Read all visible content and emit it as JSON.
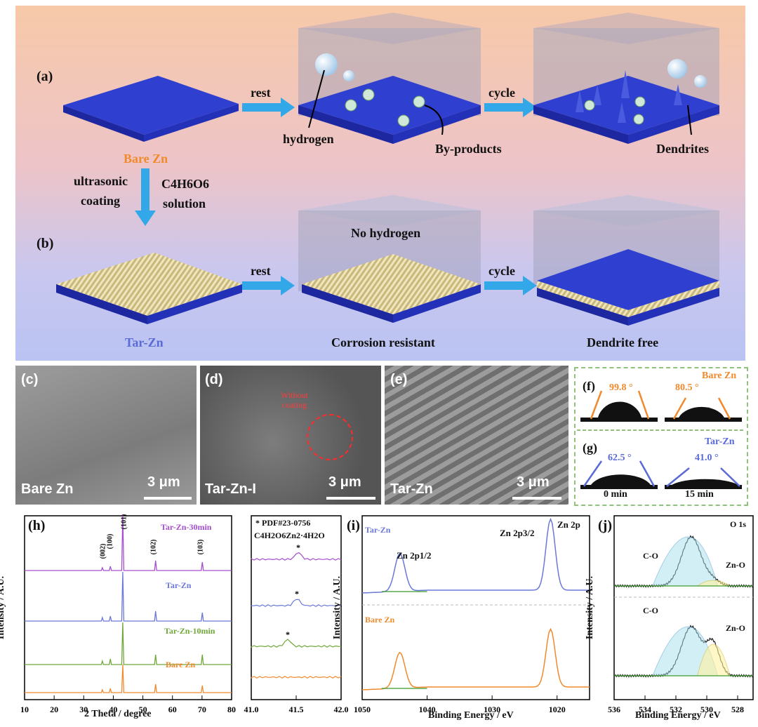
{
  "schematic": {
    "panel_a": "(a)",
    "panel_b": "(b)",
    "rest_a": "rest",
    "cycle_a": "cycle",
    "hydrogen": "hydrogen",
    "byproducts": "By-products",
    "dendrites": "Dendrites",
    "bare_zn": "Bare Zn",
    "ultrasonic": "ultrasonic",
    "coating": "coating",
    "solution_formula": "C4H6O6",
    "solution": "solution",
    "rest_b": "rest",
    "cycle_b": "cycle",
    "no_hydrogen": "No hydrogen",
    "tar_zn": "Tar-Zn",
    "corrosion_resistant": "Corrosion resistant",
    "dendrite_free": "Dendrite free",
    "colors": {
      "zn_blue": "#2f3fd0",
      "orange": "#f08a2c",
      "arrow": "#33a8e8",
      "coating": "#d8cfa0"
    }
  },
  "sem": {
    "c": {
      "letter": "(c)",
      "label": "Bare Zn",
      "scale": "3 μm"
    },
    "d": {
      "letter": "(d)",
      "label": "Tar-Zn-I",
      "scale": "3 μm",
      "annotation_1": "Without",
      "annotation_2": "coating"
    },
    "e": {
      "letter": "(e)",
      "label": "Tar-Zn",
      "scale": "3 μm"
    }
  },
  "contact_angle": {
    "f": {
      "letter": "(f)",
      "sample": "Bare Zn",
      "angle_0": "99.8 °",
      "angle_15": "80.5 °"
    },
    "g": {
      "letter": "(g)",
      "sample": "Tar-Zn",
      "angle_0": "62.5 °",
      "angle_15": "41.0 °"
    },
    "time_0": "0 min",
    "time_15": "15 min"
  },
  "chart_data": [
    {
      "panel": "(h)",
      "type": "line",
      "xlabel": "2 Theta / degree",
      "ylabel": "Intensity / A.U.",
      "xlim": [
        10,
        80
      ],
      "xticks": [
        10,
        20,
        30,
        40,
        50,
        60,
        70,
        80
      ],
      "peaks_labels": [
        "(002)",
        "(100)",
        "(101)",
        "(102)",
        "(103)"
      ],
      "peak_positions": [
        36.3,
        39.0,
        43.2,
        54.3,
        70.1
      ],
      "series": [
        {
          "name": "Tar-Zn-30min",
          "color": "#a64fcf"
        },
        {
          "name": "Tar-Zn",
          "color": "#6a78d8"
        },
        {
          "name": "Tar-Zn-10min",
          "color": "#6fa83a"
        },
        {
          "name": "Bare Zn",
          "color": "#f08a2c"
        }
      ]
    },
    {
      "panel": "(h) inset",
      "type": "line",
      "xlim": [
        41.0,
        42.0
      ],
      "xticks": [
        "41.0",
        "41.5",
        "42.0"
      ],
      "annotation_1": "* PDF#23-0756",
      "annotation_2": "C4H2O6Zn2·4H2O",
      "marker": "*"
    },
    {
      "panel": "(i)",
      "type": "line",
      "xlabel": "Binding Energy / eV",
      "ylabel": "Intensity / A.U.",
      "xlim": [
        1050,
        1015
      ],
      "xticks": [
        1050,
        1040,
        1030,
        1020
      ],
      "corner_label": "Zn 2p",
      "peak_1": "Zn 2p1/2",
      "peak_2": "Zn 2p3/2",
      "peak_positions": [
        1044.2,
        1021.0
      ],
      "series": [
        {
          "name": "Tar-Zn",
          "color": "#6a78d8"
        },
        {
          "name": "Bare Zn",
          "color": "#f08a2c"
        }
      ]
    },
    {
      "panel": "(j)",
      "type": "line",
      "xlabel": "Binding Energy / eV",
      "ylabel": "Intensity / A.U.",
      "xlim": [
        536,
        527
      ],
      "xticks": [
        536,
        534,
        532,
        530,
        528
      ],
      "corner_label": "O 1s",
      "components": [
        "C-O",
        "Zn-O"
      ],
      "peak_positions": [
        531.0,
        529.6
      ]
    }
  ]
}
